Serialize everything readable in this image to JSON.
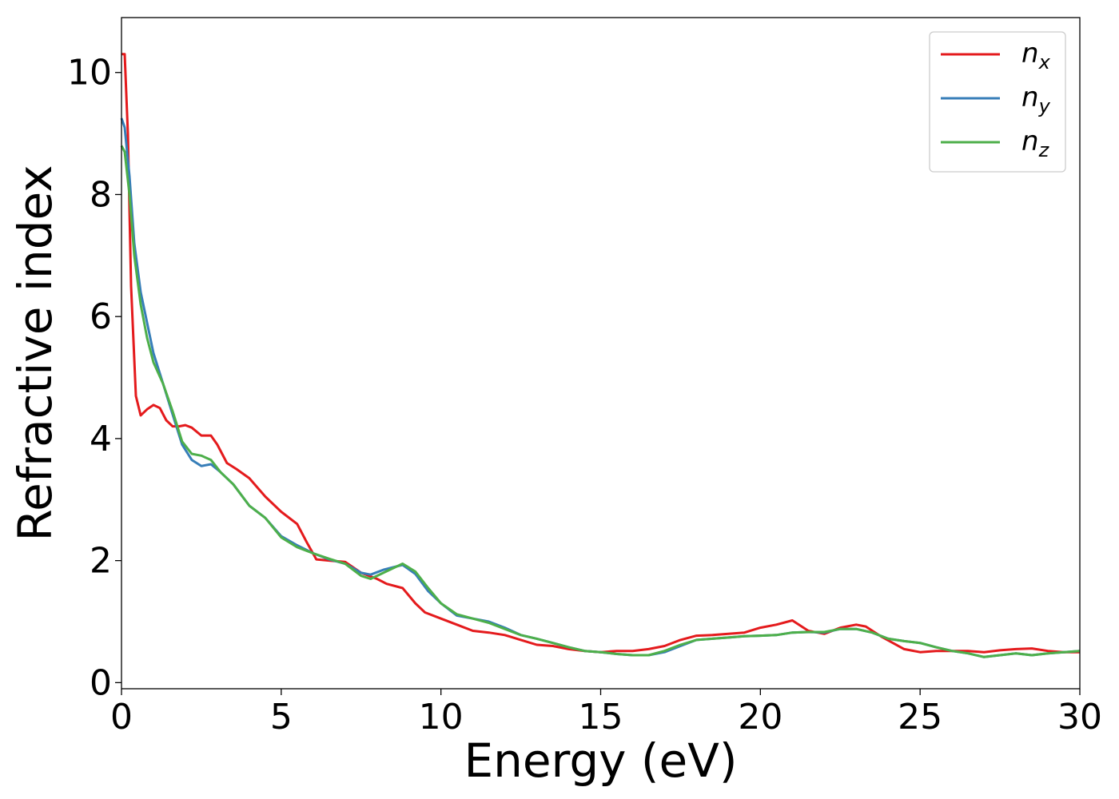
{
  "chart_data": {
    "type": "line",
    "title": "",
    "xlabel": "Energy (eV)",
    "ylabel": "Refractive index",
    "xlim": [
      0,
      30
    ],
    "ylim": [
      -0.1,
      10.9
    ],
    "xticks": [
      0,
      5,
      10,
      15,
      20,
      25,
      30
    ],
    "yticks": [
      0,
      2,
      4,
      6,
      8,
      10
    ],
    "grid": false,
    "legend_position": "top-right",
    "series": [
      {
        "name": "n",
        "subscript": "x",
        "color": "#e41a1c",
        "points": [
          [
            0,
            10.3
          ],
          [
            0.1,
            10.3
          ],
          [
            0.2,
            9.0
          ],
          [
            0.3,
            6.5
          ],
          [
            0.45,
            4.7
          ],
          [
            0.6,
            4.38
          ],
          [
            0.8,
            4.48
          ],
          [
            1.0,
            4.55
          ],
          [
            1.2,
            4.5
          ],
          [
            1.4,
            4.3
          ],
          [
            1.6,
            4.2
          ],
          [
            1.8,
            4.2
          ],
          [
            2.0,
            4.22
          ],
          [
            2.2,
            4.18
          ],
          [
            2.5,
            4.05
          ],
          [
            2.8,
            4.05
          ],
          [
            3.0,
            3.9
          ],
          [
            3.3,
            3.6
          ],
          [
            3.6,
            3.5
          ],
          [
            4.0,
            3.35
          ],
          [
            4.5,
            3.05
          ],
          [
            5.0,
            2.8
          ],
          [
            5.5,
            2.6
          ],
          [
            5.8,
            2.3
          ],
          [
            6.1,
            2.02
          ],
          [
            6.5,
            2.0
          ],
          [
            7.0,
            1.98
          ],
          [
            7.5,
            1.8
          ],
          [
            8.0,
            1.7
          ],
          [
            8.3,
            1.62
          ],
          [
            8.8,
            1.55
          ],
          [
            9.2,
            1.3
          ],
          [
            9.5,
            1.15
          ],
          [
            10.0,
            1.05
          ],
          [
            10.5,
            0.95
          ],
          [
            11.0,
            0.85
          ],
          [
            11.5,
            0.82
          ],
          [
            12.0,
            0.78
          ],
          [
            12.5,
            0.7
          ],
          [
            13.0,
            0.62
          ],
          [
            13.5,
            0.6
          ],
          [
            14.0,
            0.55
          ],
          [
            14.5,
            0.52
          ],
          [
            15.0,
            0.5
          ],
          [
            15.5,
            0.52
          ],
          [
            16.0,
            0.52
          ],
          [
            16.5,
            0.55
          ],
          [
            17.0,
            0.6
          ],
          [
            17.5,
            0.7
          ],
          [
            18.0,
            0.77
          ],
          [
            18.5,
            0.78
          ],
          [
            19.0,
            0.8
          ],
          [
            19.5,
            0.82
          ],
          [
            20.0,
            0.9
          ],
          [
            20.5,
            0.95
          ],
          [
            21.0,
            1.02
          ],
          [
            21.5,
            0.85
          ],
          [
            22.0,
            0.8
          ],
          [
            22.5,
            0.9
          ],
          [
            23.0,
            0.95
          ],
          [
            23.3,
            0.92
          ],
          [
            23.8,
            0.75
          ],
          [
            24.5,
            0.55
          ],
          [
            25.0,
            0.5
          ],
          [
            25.5,
            0.52
          ],
          [
            26.0,
            0.52
          ],
          [
            26.5,
            0.52
          ],
          [
            27.0,
            0.5
          ],
          [
            27.5,
            0.53
          ],
          [
            28.0,
            0.55
          ],
          [
            28.5,
            0.56
          ],
          [
            29.0,
            0.52
          ],
          [
            29.5,
            0.5
          ],
          [
            30.0,
            0.5
          ]
        ]
      },
      {
        "name": "n",
        "subscript": "y",
        "color": "#377eb8",
        "points": [
          [
            0,
            9.25
          ],
          [
            0.1,
            9.1
          ],
          [
            0.25,
            8.3
          ],
          [
            0.4,
            7.2
          ],
          [
            0.6,
            6.4
          ],
          [
            0.8,
            5.9
          ],
          [
            1.0,
            5.4
          ],
          [
            1.3,
            4.9
          ],
          [
            1.6,
            4.4
          ],
          [
            1.9,
            3.9
          ],
          [
            2.2,
            3.65
          ],
          [
            2.5,
            3.55
          ],
          [
            2.8,
            3.58
          ],
          [
            3.1,
            3.45
          ],
          [
            3.5,
            3.25
          ],
          [
            4.0,
            2.9
          ],
          [
            4.5,
            2.7
          ],
          [
            5.0,
            2.4
          ],
          [
            5.5,
            2.25
          ],
          [
            6.0,
            2.12
          ],
          [
            6.5,
            2.02
          ],
          [
            7.0,
            1.95
          ],
          [
            7.5,
            1.8
          ],
          [
            7.8,
            1.77
          ],
          [
            8.2,
            1.85
          ],
          [
            8.8,
            1.93
          ],
          [
            9.2,
            1.78
          ],
          [
            9.6,
            1.5
          ],
          [
            10.0,
            1.3
          ],
          [
            10.5,
            1.1
          ],
          [
            11.0,
            1.05
          ],
          [
            11.5,
            1.0
          ],
          [
            12.0,
            0.9
          ],
          [
            12.5,
            0.78
          ],
          [
            13.0,
            0.72
          ],
          [
            13.5,
            0.65
          ],
          [
            14.0,
            0.58
          ],
          [
            14.5,
            0.52
          ],
          [
            15.0,
            0.5
          ],
          [
            15.5,
            0.47
          ],
          [
            16.0,
            0.45
          ],
          [
            16.5,
            0.45
          ],
          [
            17.0,
            0.5
          ],
          [
            17.5,
            0.6
          ],
          [
            18.0,
            0.7
          ],
          [
            18.5,
            0.72
          ],
          [
            19.0,
            0.74
          ],
          [
            19.5,
            0.76
          ],
          [
            20.0,
            0.77
          ],
          [
            20.5,
            0.78
          ],
          [
            21.0,
            0.82
          ],
          [
            21.5,
            0.83
          ],
          [
            22.0,
            0.82
          ],
          [
            22.5,
            0.88
          ],
          [
            23.0,
            0.88
          ],
          [
            23.5,
            0.82
          ],
          [
            24.0,
            0.72
          ],
          [
            24.5,
            0.68
          ],
          [
            25.0,
            0.65
          ],
          [
            25.5,
            0.58
          ],
          [
            26.0,
            0.52
          ],
          [
            26.5,
            0.48
          ],
          [
            27.0,
            0.42
          ],
          [
            27.5,
            0.45
          ],
          [
            28.0,
            0.48
          ],
          [
            28.5,
            0.45
          ],
          [
            29.0,
            0.48
          ],
          [
            29.5,
            0.5
          ],
          [
            30.0,
            0.52
          ]
        ]
      },
      {
        "name": "n",
        "subscript": "z",
        "color": "#4daf4a",
        "points": [
          [
            0,
            8.8
          ],
          [
            0.1,
            8.7
          ],
          [
            0.25,
            8.0
          ],
          [
            0.4,
            7.0
          ],
          [
            0.6,
            6.2
          ],
          [
            0.8,
            5.65
          ],
          [
            1.0,
            5.25
          ],
          [
            1.3,
            4.9
          ],
          [
            1.6,
            4.45
          ],
          [
            1.9,
            3.95
          ],
          [
            2.2,
            3.75
          ],
          [
            2.5,
            3.72
          ],
          [
            2.8,
            3.65
          ],
          [
            3.1,
            3.45
          ],
          [
            3.5,
            3.25
          ],
          [
            4.0,
            2.9
          ],
          [
            4.5,
            2.7
          ],
          [
            5.0,
            2.38
          ],
          [
            5.5,
            2.22
          ],
          [
            6.0,
            2.12
          ],
          [
            6.5,
            2.03
          ],
          [
            7.0,
            1.95
          ],
          [
            7.5,
            1.75
          ],
          [
            7.8,
            1.7
          ],
          [
            8.2,
            1.8
          ],
          [
            8.8,
            1.95
          ],
          [
            9.2,
            1.82
          ],
          [
            9.6,
            1.55
          ],
          [
            10.0,
            1.3
          ],
          [
            10.5,
            1.12
          ],
          [
            11.0,
            1.05
          ],
          [
            11.5,
            0.98
          ],
          [
            12.0,
            0.88
          ],
          [
            12.5,
            0.78
          ],
          [
            13.0,
            0.72
          ],
          [
            13.5,
            0.65
          ],
          [
            14.0,
            0.58
          ],
          [
            14.5,
            0.52
          ],
          [
            15.0,
            0.5
          ],
          [
            15.5,
            0.47
          ],
          [
            16.0,
            0.45
          ],
          [
            16.5,
            0.45
          ],
          [
            17.0,
            0.52
          ],
          [
            17.5,
            0.62
          ],
          [
            18.0,
            0.7
          ],
          [
            18.5,
            0.72
          ],
          [
            19.0,
            0.74
          ],
          [
            19.5,
            0.76
          ],
          [
            20.0,
            0.77
          ],
          [
            20.5,
            0.78
          ],
          [
            21.0,
            0.82
          ],
          [
            21.5,
            0.83
          ],
          [
            22.0,
            0.83
          ],
          [
            22.5,
            0.88
          ],
          [
            23.0,
            0.88
          ],
          [
            23.5,
            0.82
          ],
          [
            24.0,
            0.72
          ],
          [
            24.5,
            0.68
          ],
          [
            25.0,
            0.65
          ],
          [
            25.5,
            0.58
          ],
          [
            26.0,
            0.52
          ],
          [
            26.5,
            0.48
          ],
          [
            27.0,
            0.42
          ],
          [
            27.5,
            0.45
          ],
          [
            28.0,
            0.48
          ],
          [
            28.5,
            0.45
          ],
          [
            29.0,
            0.48
          ],
          [
            29.5,
            0.5
          ],
          [
            30.0,
            0.52
          ]
        ]
      }
    ]
  }
}
